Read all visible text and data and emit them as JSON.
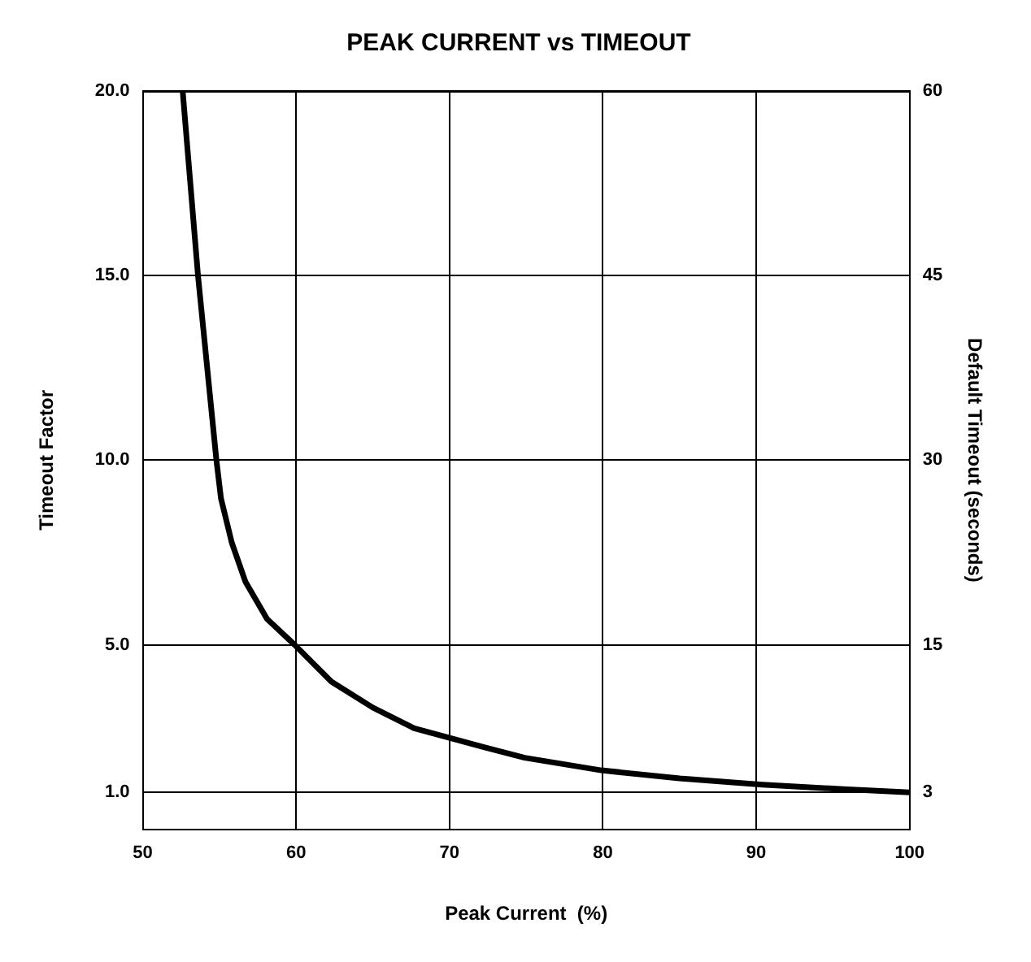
{
  "chart_data": {
    "type": "line",
    "title": "PEAK CURRENT vs TIMEOUT",
    "xlabel": "Peak Current  (%)",
    "ylabel": "Timeout Factor",
    "y2label": "Default Timeout (seconds)",
    "series": [
      {
        "color": "#000000",
        "x": [
          52.6,
          53.6,
          54.8,
          55.1,
          55.8,
          56.7,
          58.1,
          59.9,
          62.3,
          65.0,
          67.7,
          72.2,
          74.9,
          79.9,
          85.0,
          90.4,
          95.7,
          100
        ],
        "values": [
          20,
          15,
          10,
          8.96,
          7.77,
          6.7,
          5.7,
          5.0,
          4.0,
          3.3,
          2.74,
          2.23,
          1.94,
          1.6,
          1.38,
          1.21,
          1.09,
          1.0
        ]
      }
    ],
    "xlim": [
      50,
      100
    ],
    "xticks": [
      50,
      60,
      70,
      80,
      90,
      100
    ],
    "ylim": [
      0,
      20
    ],
    "yticks": [
      {
        "value": 20,
        "label": "20.0"
      },
      {
        "value": 15,
        "label": "15.0"
      },
      {
        "value": 10,
        "label": "10.0"
      },
      {
        "value": 5,
        "label": "5.0"
      },
      {
        "value": 1,
        "label": "1.0"
      }
    ],
    "y2lim": [
      0,
      60
    ],
    "y2ticks": [
      60,
      45,
      30,
      15,
      3
    ],
    "grid": true,
    "legend": false,
    "marker": "none",
    "line_style": "solid"
  }
}
